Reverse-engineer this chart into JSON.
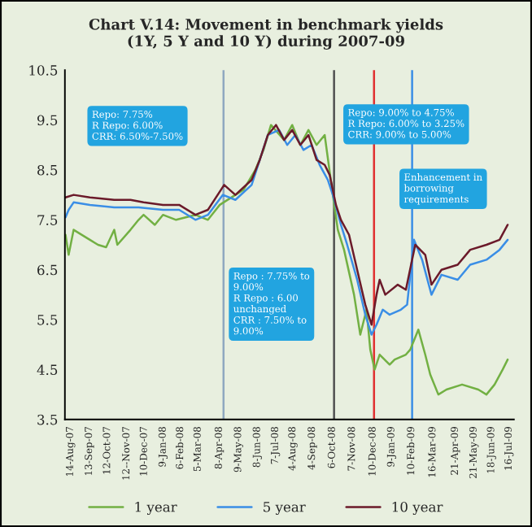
{
  "chart_data": {
    "type": "line",
    "title": "Chart V.14: Movement in benchmark yields\n(1Y, 5 Y and 10 Y) during 2007-09",
    "series": [
      {
        "name": "1 year",
        "color": "#72b043",
        "x": [
          "2007-08-06",
          "2007-08-11",
          "2007-08-19",
          "2007-09-14",
          "2007-09-27",
          "2007-10-10",
          "2007-10-23",
          "2007-10-28",
          "2007-11-18",
          "2007-12-01",
          "2007-12-09",
          "2007-12-27",
          "2008-01-09",
          "2008-01-30",
          "2008-03-01",
          "2008-03-21",
          "2008-04-09",
          "2008-05-04",
          "2008-05-17",
          "2008-06-05",
          "2008-06-18",
          "2008-06-30",
          "2008-07-21",
          "2008-08-03",
          "2008-08-16",
          "2008-08-29",
          "2008-09-11",
          "2008-09-24",
          "2008-10-07",
          "2008-10-15",
          "2008-10-25",
          "2008-11-10",
          "2008-11-20",
          "2008-11-30",
          "2008-12-06",
          "2008-12-13",
          "2008-12-21",
          "2009-01-06",
          "2009-01-14",
          "2009-02-01",
          "2009-02-08",
          "2009-02-21",
          "2009-03-04",
          "2009-03-12",
          "2009-03-25",
          "2009-04-07",
          "2009-05-02",
          "2009-05-28",
          "2009-06-10",
          "2009-06-23",
          "2009-07-06",
          "2009-07-14"
        ],
        "values": [
          7.2,
          6.8,
          7.3,
          7.1,
          7.0,
          6.95,
          7.3,
          7.0,
          7.3,
          7.5,
          7.6,
          7.4,
          7.6,
          7.5,
          7.6,
          7.5,
          7.8,
          8.0,
          8.1,
          8.5,
          8.9,
          9.4,
          9.1,
          9.4,
          9.0,
          9.3,
          9.0,
          9.2,
          8.0,
          7.3,
          6.9,
          6.0,
          5.2,
          5.7,
          4.9,
          4.5,
          4.8,
          4.6,
          4.7,
          4.8,
          4.9,
          5.3,
          4.8,
          4.4,
          4.0,
          4.1,
          4.2,
          4.1,
          4.0,
          4.2,
          4.5,
          4.7
        ]
      },
      {
        "name": "5 year",
        "color": "#3a8ee6",
        "x": [
          "2007-08-06",
          "2007-08-11",
          "2007-08-19",
          "2007-09-14",
          "2007-10-23",
          "2007-12-01",
          "2008-01-09",
          "2008-02-04",
          "2008-03-01",
          "2008-03-21",
          "2008-04-14",
          "2008-05-04",
          "2008-05-30",
          "2008-06-12",
          "2008-06-25",
          "2008-07-13",
          "2008-07-26",
          "2008-08-08",
          "2008-08-21",
          "2008-09-03",
          "2008-09-16",
          "2008-09-29",
          "2008-10-07",
          "2008-10-20",
          "2008-10-30",
          "2008-11-15",
          "2008-11-28",
          "2008-12-08",
          "2008-12-16",
          "2008-12-26",
          "2009-01-06",
          "2009-01-24",
          "2009-02-03",
          "2009-02-14",
          "2009-02-27",
          "2009-03-14",
          "2009-03-30",
          "2009-04-25",
          "2009-05-15",
          "2009-06-10",
          "2009-07-01",
          "2009-07-14"
        ],
        "values": [
          7.55,
          7.7,
          7.85,
          7.8,
          7.75,
          7.75,
          7.7,
          7.7,
          7.5,
          7.6,
          8.0,
          7.9,
          8.2,
          8.7,
          9.2,
          9.3,
          9.0,
          9.2,
          8.9,
          9.0,
          8.6,
          8.3,
          8.0,
          7.4,
          7.0,
          6.3,
          5.6,
          5.2,
          5.4,
          5.7,
          5.6,
          5.7,
          5.8,
          7.1,
          6.7,
          6.0,
          6.4,
          6.3,
          6.6,
          6.7,
          6.9,
          7.1
        ]
      },
      {
        "name": "10 year",
        "color": "#6b1a2a",
        "x": [
          "2007-08-06",
          "2007-08-19",
          "2007-09-14",
          "2007-10-23",
          "2007-11-18",
          "2007-12-09",
          "2008-01-09",
          "2008-02-04",
          "2008-03-01",
          "2008-03-21",
          "2008-04-16",
          "2008-05-04",
          "2008-05-30",
          "2008-06-12",
          "2008-06-25",
          "2008-07-08",
          "2008-07-21",
          "2008-08-03",
          "2008-08-16",
          "2008-08-29",
          "2008-09-11",
          "2008-09-24",
          "2008-10-02",
          "2008-10-12",
          "2008-10-20",
          "2008-11-02",
          "2008-11-15",
          "2008-11-28",
          "2008-12-08",
          "2008-12-16",
          "2008-12-21",
          "2008-12-30",
          "2009-01-19",
          "2009-02-01",
          "2009-02-16",
          "2009-03-04",
          "2009-03-14",
          "2009-03-30",
          "2009-04-25",
          "2009-05-15",
          "2009-06-10",
          "2009-07-01",
          "2009-07-14"
        ],
        "values": [
          7.95,
          8.0,
          7.95,
          7.9,
          7.9,
          7.85,
          7.8,
          7.8,
          7.6,
          7.7,
          8.2,
          8.0,
          8.3,
          8.7,
          9.2,
          9.4,
          9.1,
          9.3,
          9.0,
          9.2,
          8.7,
          8.6,
          8.4,
          7.8,
          7.5,
          7.2,
          6.5,
          5.8,
          5.4,
          6.0,
          6.3,
          6.0,
          6.2,
          6.1,
          7.0,
          6.8,
          6.2,
          6.5,
          6.6,
          6.9,
          7.0,
          7.1,
          7.4
        ]
      }
    ],
    "xlim": [
      "2007-08-05",
      "2009-07-24"
    ],
    "xticks": [
      {
        "value": "2007-08-14",
        "label": "14-Aug-07"
      },
      {
        "value": "2007-09-13",
        "label": "13-Sep-07"
      },
      {
        "value": "2007-10-12",
        "label": "12-Oct-07"
      },
      {
        "value": "2007-11-12",
        "label": "12--Nov-07"
      },
      {
        "value": "2007-12-10",
        "label": "10-Dec-07"
      },
      {
        "value": "2008-01-09",
        "label": "9-Jan-08"
      },
      {
        "value": "2008-02-06",
        "label": "6-Feb-08"
      },
      {
        "value": "2008-03-05",
        "label": "5-Mar-08"
      },
      {
        "value": "2008-04-08",
        "label": "8-Apr-08"
      },
      {
        "value": "2008-05-09",
        "label": "9-May-08"
      },
      {
        "value": "2008-06-08",
        "label": "8-Jun-08"
      },
      {
        "value": "2008-07-07",
        "label": "7-Jul-08"
      },
      {
        "value": "2008-08-04",
        "label": "4-Aug-08"
      },
      {
        "value": "2008-09-04",
        "label": "4-Sep-08"
      },
      {
        "value": "2008-10-06",
        "label": "6-Oct-08"
      },
      {
        "value": "2008-11-07",
        "label": "7-Nov-08"
      },
      {
        "value": "2008-12-10",
        "label": "10-Dec-08"
      },
      {
        "value": "2009-01-09",
        "label": "9-Jan-09"
      },
      {
        "value": "2009-02-10",
        "label": "10-Feb-09"
      },
      {
        "value": "2009-03-16",
        "label": "16-Mar-09"
      },
      {
        "value": "2009-04-21",
        "label": "21-Apr-09"
      },
      {
        "value": "2009-05-21",
        "label": "21-May-09"
      },
      {
        "value": "2009-06-18",
        "label": "18-Jun-09"
      },
      {
        "value": "2009-07-16",
        "label": "16-Jul-09"
      }
    ],
    "ylim": [
      3.5,
      10.5
    ],
    "yticks": [
      3.5,
      4.5,
      5.5,
      6.5,
      7.5,
      8.5,
      9.5,
      10.5
    ],
    "ref_lines": [
      {
        "axis": "x",
        "value": "2008-04-15",
        "color": "#8fa8c0"
      },
      {
        "axis": "x",
        "value": "2008-10-09",
        "color": "#505050"
      },
      {
        "axis": "x",
        "value": "2008-12-12",
        "color": "#e03030"
      },
      {
        "axis": "x",
        "value": "2009-02-11",
        "color": "#3a8ee6"
      }
    ],
    "annotations": [
      "Repo: 7.75%\nR Repo: 6.00%\nCRR: 6.50%-7.50%",
      "Repo : 7.75% to\n9.00%\nR Repo : 6.00\nunchanged\nCRR : 7.50% to\n9.00%",
      "Repo: 9.00% to 4.75%\nR Repo: 6.00% to 3.25%\nCRR: 9.00% to 5.00%",
      "Enhancement in\nborrowing\nrequirements"
    ],
    "grid": false,
    "legend": "bottom"
  }
}
